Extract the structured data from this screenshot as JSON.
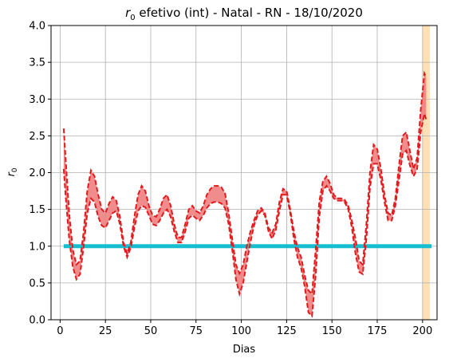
{
  "chart_data": {
    "type": "line",
    "title_prefix": "r",
    "title_subscript": "0",
    "title_rest": " efetivo (int) - Natal - RN - 18/10/2020",
    "xlabel": "Dias",
    "ylabel_base": "r",
    "ylabel_subscript": "0",
    "xlim": [
      -5,
      208
    ],
    "ylim": [
      0.0,
      4.0
    ],
    "xticks": [
      0,
      25,
      50,
      75,
      100,
      125,
      150,
      175,
      200
    ],
    "yticks": [
      "0.0",
      "0.5",
      "1.0",
      "1.5",
      "2.0",
      "2.5",
      "3.0",
      "3.5",
      "4.0"
    ],
    "grid": true,
    "colors": {
      "band_fill": "#f08080",
      "band_line": "#e31a1c",
      "reference_line": "#17becf",
      "highlight_span": "#ffe0b3",
      "grid": "#b0b0b0"
    },
    "reference_line": {
      "y": 1.0,
      "x_start": 2,
      "x_end": 205
    },
    "highlight_span": {
      "x_start": 200,
      "x_end": 204
    },
    "series": [
      {
        "role": "upper",
        "x": [
          2,
          3,
          5,
          7,
          9,
          11,
          13,
          15,
          17,
          19,
          21,
          23,
          25,
          27,
          29,
          31,
          33,
          35,
          37,
          39,
          41,
          43,
          45,
          47,
          49,
          51,
          53,
          55,
          57,
          59,
          61,
          63,
          65,
          67,
          69,
          71,
          73,
          75,
          77,
          79,
          81,
          83,
          85,
          87,
          89,
          91,
          93,
          95,
          97,
          99,
          101,
          103,
          105,
          107,
          109,
          111,
          113,
          115,
          117,
          119,
          121,
          123,
          125,
          127,
          129,
          131,
          133,
          135,
          137,
          139,
          141,
          143,
          145,
          147,
          149,
          151,
          153,
          155,
          157,
          159,
          161,
          163,
          165,
          167,
          169,
          171,
          173,
          175,
          177,
          179,
          181,
          183,
          185,
          187,
          189,
          191,
          193,
          195,
          197,
          199,
          201,
          202
        ],
        "y": [
          2.6,
          2.2,
          1.45,
          0.95,
          0.75,
          0.8,
          1.2,
          1.75,
          2.03,
          1.95,
          1.7,
          1.5,
          1.45,
          1.58,
          1.67,
          1.62,
          1.4,
          1.05,
          0.9,
          1.05,
          1.4,
          1.7,
          1.82,
          1.75,
          1.55,
          1.42,
          1.4,
          1.5,
          1.65,
          1.7,
          1.55,
          1.3,
          1.12,
          1.12,
          1.3,
          1.5,
          1.55,
          1.48,
          1.45,
          1.55,
          1.7,
          1.78,
          1.82,
          1.82,
          1.8,
          1.72,
          1.45,
          1.1,
          0.75,
          0.63,
          0.75,
          1.0,
          1.2,
          1.35,
          1.48,
          1.52,
          1.45,
          1.25,
          1.18,
          1.3,
          1.6,
          1.78,
          1.75,
          1.5,
          1.2,
          0.98,
          0.85,
          0.6,
          0.4,
          0.35,
          0.95,
          1.6,
          1.88,
          1.95,
          1.85,
          1.7,
          1.65,
          1.65,
          1.63,
          1.55,
          1.35,
          1.1,
          0.8,
          0.75,
          1.3,
          2.0,
          2.38,
          2.32,
          2.05,
          1.7,
          1.45,
          1.42,
          1.65,
          2.1,
          2.5,
          2.55,
          2.3,
          2.05,
          2.2,
          2.85,
          3.35,
          3.3
        ]
      },
      {
        "role": "lower",
        "x": [
          2,
          3,
          5,
          7,
          9,
          11,
          13,
          15,
          17,
          19,
          21,
          23,
          25,
          27,
          29,
          31,
          33,
          35,
          37,
          39,
          41,
          43,
          45,
          47,
          49,
          51,
          53,
          55,
          57,
          59,
          61,
          63,
          65,
          67,
          69,
          71,
          73,
          75,
          77,
          79,
          81,
          83,
          85,
          87,
          89,
          91,
          93,
          95,
          97,
          99,
          101,
          103,
          105,
          107,
          109,
          111,
          113,
          115,
          117,
          119,
          121,
          123,
          125,
          127,
          129,
          131,
          133,
          135,
          137,
          139,
          141,
          143,
          145,
          147,
          149,
          151,
          153,
          155,
          157,
          159,
          161,
          163,
          165,
          167,
          169,
          171,
          173,
          175,
          177,
          179,
          181,
          183,
          185,
          187,
          189,
          191,
          193,
          195,
          197,
          199,
          201,
          202
        ],
        "y": [
          2.05,
          1.7,
          1.1,
          0.72,
          0.55,
          0.62,
          1.0,
          1.45,
          1.65,
          1.6,
          1.4,
          1.28,
          1.25,
          1.35,
          1.45,
          1.48,
          1.3,
          1.0,
          0.85,
          0.98,
          1.25,
          1.48,
          1.55,
          1.53,
          1.42,
          1.3,
          1.28,
          1.35,
          1.45,
          1.5,
          1.4,
          1.2,
          1.05,
          1.05,
          1.2,
          1.38,
          1.42,
          1.38,
          1.35,
          1.42,
          1.52,
          1.58,
          1.6,
          1.6,
          1.58,
          1.52,
          1.3,
          0.95,
          0.55,
          0.35,
          0.5,
          0.78,
          1.05,
          1.28,
          1.42,
          1.48,
          1.42,
          1.2,
          1.1,
          1.22,
          1.48,
          1.7,
          1.7,
          1.45,
          1.1,
          0.85,
          0.7,
          0.45,
          0.1,
          0.05,
          0.6,
          1.4,
          1.75,
          1.82,
          1.75,
          1.65,
          1.62,
          1.62,
          1.6,
          1.5,
          1.25,
          0.9,
          0.65,
          0.62,
          1.1,
          1.8,
          2.12,
          2.12,
          1.9,
          1.6,
          1.35,
          1.35,
          1.55,
          1.9,
          2.25,
          2.3,
          2.1,
          1.95,
          2.05,
          2.55,
          2.8,
          2.72
        ]
      }
    ]
  }
}
